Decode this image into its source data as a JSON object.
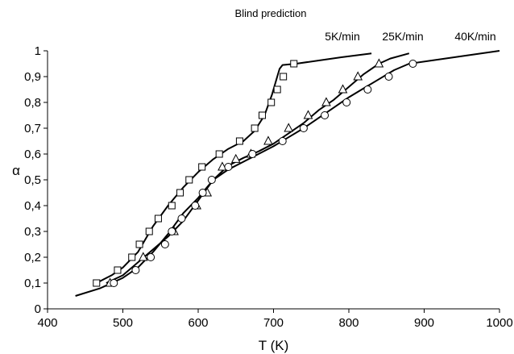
{
  "chart_data": {
    "type": "scatter",
    "title": "Blind prediction",
    "xlabel": "T (K)",
    "ylabel": "α",
    "xlim": [
      400,
      1000
    ],
    "ylim": [
      0,
      1
    ],
    "x_ticks": [
      "400",
      "500",
      "600",
      "700",
      "800",
      "900",
      "1000"
    ],
    "y_ticks": [
      "0",
      "0,1",
      "0,2",
      "0,3",
      "0,4",
      "0,5",
      "0,6",
      "0,7",
      "0,8",
      "0,9",
      "1"
    ],
    "grid": false,
    "legend": "none",
    "series": [
      {
        "name": "5K/min",
        "marker": "square",
        "points": [
          [
            465,
            0.1
          ],
          [
            493,
            0.15
          ],
          [
            512,
            0.2
          ],
          [
            522,
            0.25
          ],
          [
            535,
            0.3
          ],
          [
            547,
            0.35
          ],
          [
            565,
            0.4
          ],
          [
            576,
            0.45
          ],
          [
            588,
            0.5
          ],
          [
            605,
            0.55
          ],
          [
            628,
            0.6
          ],
          [
            655,
            0.65
          ],
          [
            675,
            0.7
          ],
          [
            685,
            0.75
          ],
          [
            697,
            0.8
          ],
          [
            705,
            0.85
          ],
          [
            713,
            0.9
          ],
          [
            727,
            0.95
          ]
        ],
        "curve": [
          [
            465,
            0.1
          ],
          [
            485,
            0.13
          ],
          [
            500,
            0.16
          ],
          [
            520,
            0.22
          ],
          [
            540,
            0.32
          ],
          [
            560,
            0.4
          ],
          [
            580,
            0.47
          ],
          [
            600,
            0.53
          ],
          [
            620,
            0.58
          ],
          [
            640,
            0.62
          ],
          [
            660,
            0.65
          ],
          [
            675,
            0.69
          ],
          [
            688,
            0.75
          ],
          [
            698,
            0.83
          ],
          [
            704,
            0.89
          ],
          [
            708,
            0.93
          ],
          [
            712,
            0.945
          ],
          [
            730,
            0.95
          ],
          [
            790,
            0.975
          ],
          [
            830,
            0.99
          ]
        ]
      },
      {
        "name": "25K/min",
        "marker": "triangle",
        "points": [
          [
            483,
            0.1
          ],
          [
            527,
            0.2
          ],
          [
            568,
            0.3
          ],
          [
            598,
            0.4
          ],
          [
            612,
            0.45
          ],
          [
            632,
            0.55
          ],
          [
            650,
            0.58
          ],
          [
            670,
            0.6
          ],
          [
            693,
            0.65
          ],
          [
            720,
            0.7
          ],
          [
            746,
            0.75
          ],
          [
            770,
            0.8
          ],
          [
            792,
            0.85
          ],
          [
            812,
            0.9
          ],
          [
            840,
            0.95
          ]
        ],
        "curve": [
          [
            478,
            0.1
          ],
          [
            500,
            0.13
          ],
          [
            520,
            0.18
          ],
          [
            540,
            0.23
          ],
          [
            560,
            0.28
          ],
          [
            580,
            0.34
          ],
          [
            600,
            0.42
          ],
          [
            620,
            0.5
          ],
          [
            640,
            0.555
          ],
          [
            660,
            0.585
          ],
          [
            680,
            0.61
          ],
          [
            700,
            0.64
          ],
          [
            720,
            0.68
          ],
          [
            740,
            0.72
          ],
          [
            760,
            0.77
          ],
          [
            780,
            0.81
          ],
          [
            800,
            0.86
          ],
          [
            820,
            0.91
          ],
          [
            840,
            0.95
          ],
          [
            855,
            0.97
          ],
          [
            880,
            0.99
          ]
        ]
      },
      {
        "name": "40K/min",
        "marker": "circle",
        "points": [
          [
            488,
            0.1
          ],
          [
            517,
            0.15
          ],
          [
            537,
            0.2
          ],
          [
            556,
            0.25
          ],
          [
            565,
            0.3
          ],
          [
            578,
            0.35
          ],
          [
            596,
            0.4
          ],
          [
            606,
            0.45
          ],
          [
            618,
            0.5
          ],
          [
            640,
            0.55
          ],
          [
            672,
            0.6
          ],
          [
            712,
            0.65
          ],
          [
            740,
            0.7
          ],
          [
            768,
            0.75
          ],
          [
            797,
            0.8
          ],
          [
            825,
            0.85
          ],
          [
            853,
            0.9
          ],
          [
            885,
            0.95
          ]
        ],
        "curve": [
          [
            437,
            0.05
          ],
          [
            470,
            0.08
          ],
          [
            500,
            0.12
          ],
          [
            520,
            0.16
          ],
          [
            540,
            0.22
          ],
          [
            560,
            0.29
          ],
          [
            580,
            0.37
          ],
          [
            600,
            0.43
          ],
          [
            620,
            0.5
          ],
          [
            640,
            0.54
          ],
          [
            660,
            0.57
          ],
          [
            680,
            0.6
          ],
          [
            700,
            0.63
          ],
          [
            720,
            0.665
          ],
          [
            740,
            0.7
          ],
          [
            760,
            0.74
          ],
          [
            780,
            0.78
          ],
          [
            800,
            0.82
          ],
          [
            820,
            0.855
          ],
          [
            840,
            0.89
          ],
          [
            860,
            0.925
          ],
          [
            880,
            0.95
          ],
          [
            940,
            0.975
          ],
          [
            1000,
            1.0
          ]
        ]
      }
    ]
  }
}
